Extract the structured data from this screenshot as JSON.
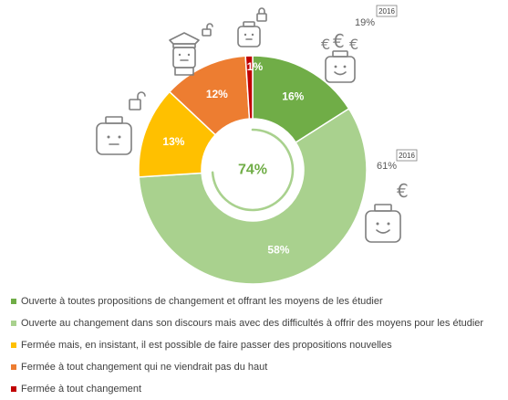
{
  "chart_data": {
    "type": "pie",
    "donut": true,
    "center_label": "74%",
    "series": [
      {
        "name": "Ouverte à toutes propositions de changement et offrant les moyens de les étudier",
        "value": 16,
        "label": "16%",
        "color": "#70ad47"
      },
      {
        "name": "Ouverte au changement dans son discours mais avec des difficultés à offrir des moyens pour les étudier",
        "value": 58,
        "label": "58%",
        "color": "#a9d18e"
      },
      {
        "name": "Fermée mais, en insistant, il est possible de faire passer des propositions nouvelles",
        "value": 13,
        "label": "13%",
        "color": "#ffc000"
      },
      {
        "name": "Fermée à tout changement qui ne viendrait pas du haut",
        "value": 12,
        "label": "12%",
        "color": "#ed7d31"
      },
      {
        "name": "Fermée à tout changement",
        "value": 1,
        "label": "1%",
        "color": "#c00000"
      }
    ],
    "legend_position": "bottom-left",
    "comparison_notes": [
      {
        "value": "19%",
        "badge": "2016"
      },
      {
        "value": "61%",
        "badge": "2016"
      }
    ]
  },
  "icons": {
    "euro_symbol": "€",
    "items": [
      "lock-icon",
      "lego-head-icon",
      "police-head-icon",
      "open-lock-icon",
      "euro-icon"
    ]
  }
}
